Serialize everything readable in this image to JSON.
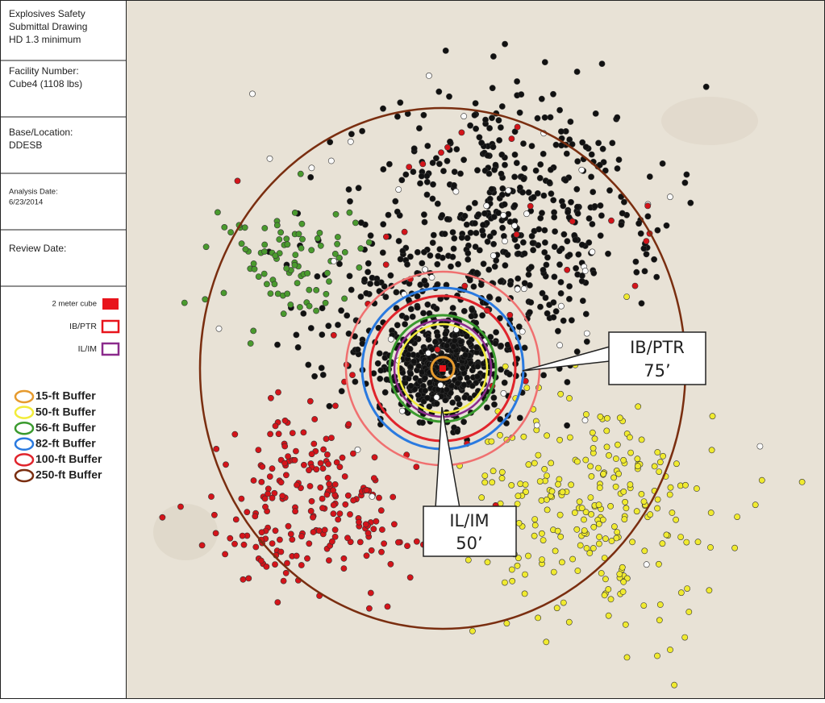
{
  "sidebar": {
    "title": [
      "Explosives Safety",
      "Submittal Drawing",
      "HD 1.3 minimum"
    ],
    "facility": {
      "label": "Facility Number:",
      "value": "Cube4 (1108 lbs)"
    },
    "base": {
      "label": "Base/Location:",
      "value": "DDESB"
    },
    "analysis": {
      "label": "Analysis Date:",
      "value": "6/23/2014"
    },
    "review": {
      "label": "Review Date:"
    },
    "legend": [
      {
        "label": "2 meter cube",
        "color": "#e8141c",
        "style": "fill"
      },
      {
        "label": "IB/PTR",
        "color": "#e8141c",
        "style": "outline"
      },
      {
        "label": "IL/IM",
        "color": "#8b2a8c",
        "style": "outline"
      }
    ],
    "buffers": [
      {
        "label": "15-ft Buffer",
        "color": "#e69a2e"
      },
      {
        "label": "50-ft Buffer",
        "color": "#f2ec3a"
      },
      {
        "label": "56-ft Buffer",
        "color": "#3a9a2e"
      },
      {
        "label": "82-ft Buffer",
        "color": "#2a7ae0"
      },
      {
        "label": "100-ft Buffer",
        "color": "#e0242c"
      },
      {
        "label": "250-ft Buffer",
        "color": "#7a2e10"
      }
    ]
  },
  "callouts": [
    {
      "lines": [
        "IB/PTR",
        "75’"
      ]
    },
    {
      "lines": [
        "IL/IM",
        "50’"
      ]
    }
  ]
}
